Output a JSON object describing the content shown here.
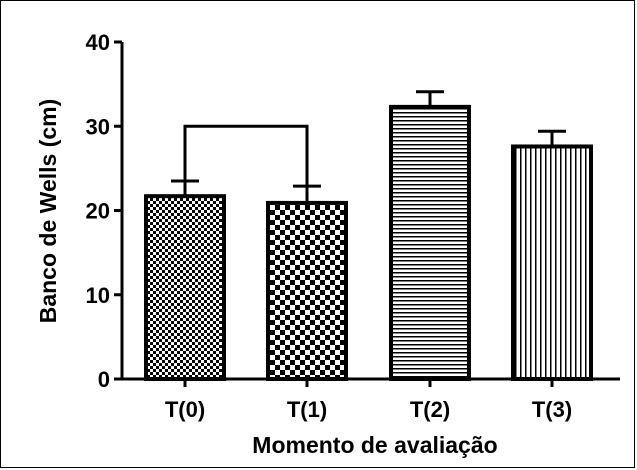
{
  "chart_data": {
    "type": "bar",
    "categories": [
      "T(0)",
      "T(1)",
      "T(2)",
      "T(3)"
    ],
    "values": [
      21.7,
      20.9,
      32.3,
      27.6
    ],
    "errors": [
      1.8,
      2.0,
      1.8,
      1.8
    ],
    "patterns": [
      "checker-dense",
      "checker-large",
      "horizontal-lines",
      "vertical-lines"
    ],
    "xlabel": "Momento de avaliação",
    "ylabel": "Banco de Wells (cm)",
    "ylim": [
      0,
      40
    ],
    "yticks": [
      0,
      10,
      20,
      30,
      40
    ],
    "bracket": {
      "from": 0,
      "to": 1,
      "y": 30
    },
    "grid": false,
    "colors": {
      "bar_stroke": "#000000",
      "fill": "#000000",
      "background": "#ffffff"
    }
  }
}
